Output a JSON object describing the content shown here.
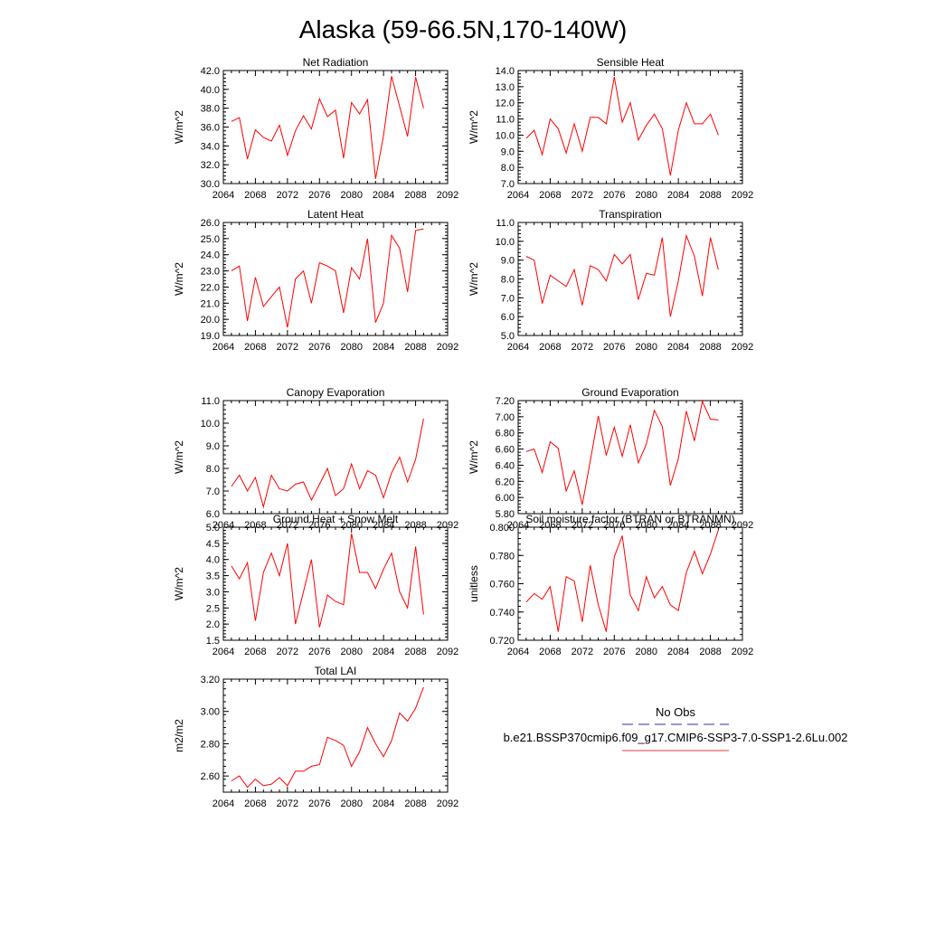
{
  "title": "Alaska (59-66.5N,170-140W)",
  "legend": {
    "obs_label": "No Obs",
    "obs_color": "#3333aa",
    "model_label": "b.e21.BSSP370cmip6.f09_g17.CMIP6-SSP3-7.0-SSP1-2.6Lu.002",
    "model_color": "#e8393f"
  },
  "chart_data": [
    {
      "type": "line",
      "title": "Net Radiation",
      "ylabel": "W/m^2",
      "xlim": [
        2064,
        2092
      ],
      "xticks": [
        "2064",
        "2068",
        "2072",
        "2076",
        "2080",
        "2084",
        "2088",
        "2092"
      ],
      "ylim": [
        30.0,
        42.0
      ],
      "yticks": [
        "30.0",
        "32.0",
        "34.0",
        "36.0",
        "38.0",
        "40.0",
        "42.0"
      ],
      "x": [
        2065,
        2066,
        2067,
        2068,
        2069,
        2070,
        2071,
        2072,
        2073,
        2074,
        2075,
        2076,
        2077,
        2078,
        2079,
        2080,
        2081,
        2082,
        2083,
        2084,
        2085,
        2086,
        2087,
        2088,
        2089
      ],
      "series": [
        {
          "color": "#ff0000",
          "values": [
            36.6,
            37.0,
            32.6,
            35.7,
            34.9,
            34.5,
            36.2,
            33.0,
            35.6,
            37.2,
            35.8,
            39.0,
            37.1,
            37.8,
            32.7,
            38.6,
            37.4,
            38.9,
            30.5,
            35.1,
            41.4,
            38.2,
            35.0,
            41.3,
            38.0
          ]
        }
      ]
    },
    {
      "type": "line",
      "title": "Sensible Heat",
      "ylabel": "W/m^2",
      "xlim": [
        2064,
        2092
      ],
      "xticks": [
        "2064",
        "2068",
        "2072",
        "2076",
        "2080",
        "2084",
        "2088",
        "2092"
      ],
      "ylim": [
        7.0,
        14.0
      ],
      "yticks": [
        "7.0",
        "8.0",
        "9.0",
        "10.0",
        "11.0",
        "12.0",
        "13.0",
        "14.0"
      ],
      "x": [
        2065,
        2066,
        2067,
        2068,
        2069,
        2070,
        2071,
        2072,
        2073,
        2074,
        2075,
        2076,
        2077,
        2078,
        2079,
        2080,
        2081,
        2082,
        2083,
        2084,
        2085,
        2086,
        2087,
        2088,
        2089
      ],
      "series": [
        {
          "color": "#ff0000",
          "values": [
            9.8,
            10.3,
            8.8,
            11.0,
            10.4,
            8.9,
            10.7,
            9.0,
            11.1,
            11.1,
            10.7,
            13.6,
            10.8,
            12.0,
            9.7,
            10.6,
            11.3,
            10.4,
            7.5,
            10.3,
            12.0,
            10.7,
            10.7,
            11.3,
            10.0
          ]
        }
      ]
    },
    {
      "type": "line",
      "title": "Latent Heat",
      "ylabel": "W/m^2",
      "xlim": [
        2064,
        2092
      ],
      "xticks": [
        "2064",
        "2068",
        "2072",
        "2076",
        "2080",
        "2084",
        "2088",
        "2092"
      ],
      "ylim": [
        19.0,
        26.0
      ],
      "yticks": [
        "19.0",
        "20.0",
        "21.0",
        "22.0",
        "23.0",
        "24.0",
        "25.0",
        "26.0"
      ],
      "x": [
        2065,
        2066,
        2067,
        2068,
        2069,
        2070,
        2071,
        2072,
        2073,
        2074,
        2075,
        2076,
        2077,
        2078,
        2079,
        2080,
        2081,
        2082,
        2083,
        2084,
        2085,
        2086,
        2087,
        2088,
        2089
      ],
      "series": [
        {
          "color": "#ff0000",
          "values": [
            23.0,
            23.3,
            19.9,
            22.6,
            20.8,
            21.4,
            22.0,
            19.5,
            22.5,
            23.0,
            21.0,
            23.5,
            23.3,
            23.0,
            20.4,
            23.2,
            22.5,
            25.0,
            19.8,
            21.0,
            25.2,
            24.4,
            21.7,
            25.5,
            25.6
          ]
        }
      ]
    },
    {
      "type": "line",
      "title": "Transpiration",
      "ylabel": "W/m^2",
      "xlim": [
        2064,
        2092
      ],
      "xticks": [
        "2064",
        "2068",
        "2072",
        "2076",
        "2080",
        "2084",
        "2088",
        "2092"
      ],
      "ylim": [
        5.0,
        11.0
      ],
      "yticks": [
        "5.0",
        "6.0",
        "7.0",
        "8.0",
        "9.0",
        "10.0",
        "11.0"
      ],
      "x": [
        2065,
        2066,
        2067,
        2068,
        2069,
        2070,
        2071,
        2072,
        2073,
        2074,
        2075,
        2076,
        2077,
        2078,
        2079,
        2080,
        2081,
        2082,
        2083,
        2084,
        2085,
        2086,
        2087,
        2088,
        2089
      ],
      "series": [
        {
          "color": "#ff0000",
          "values": [
            9.2,
            9.0,
            6.7,
            8.2,
            7.9,
            7.6,
            8.5,
            6.6,
            8.7,
            8.5,
            7.9,
            9.3,
            8.8,
            9.3,
            6.9,
            8.3,
            8.2,
            10.2,
            6.0,
            7.9,
            10.3,
            9.2,
            7.1,
            10.2,
            8.5
          ]
        }
      ]
    },
    {
      "type": "line",
      "title": "Canopy Evaporation",
      "ylabel": "W/m^2",
      "xlim": [
        2064,
        2092
      ],
      "xticks": [
        "2064",
        "2068",
        "2072",
        "2076",
        "2080",
        "2084",
        "2088",
        "2092"
      ],
      "ylim": [
        6.0,
        11.0
      ],
      "yticks": [
        "6.0",
        "7.0",
        "8.0",
        "9.0",
        "10.0",
        "11.0"
      ],
      "x": [
        2065,
        2066,
        2067,
        2068,
        2069,
        2070,
        2071,
        2072,
        2073,
        2074,
        2075,
        2076,
        2077,
        2078,
        2079,
        2080,
        2081,
        2082,
        2083,
        2084,
        2085,
        2086,
        2087,
        2088,
        2089
      ],
      "series": [
        {
          "color": "#ff0000",
          "values": [
            7.2,
            7.7,
            7.0,
            7.6,
            6.3,
            7.7,
            7.1,
            7.0,
            7.3,
            7.4,
            6.6,
            7.3,
            8.0,
            6.8,
            7.1,
            8.2,
            7.1,
            7.9,
            7.7,
            6.7,
            7.8,
            8.5,
            7.4,
            8.4,
            10.2
          ]
        }
      ]
    },
    {
      "type": "line",
      "title": "Ground Evaporation",
      "ylabel": "W/m^2",
      "xlim": [
        2064,
        2092
      ],
      "xticks": [
        "2064",
        "2068",
        "2072",
        "2076",
        "2080",
        "2084",
        "2088",
        "2092"
      ],
      "ylim": [
        5.8,
        7.2
      ],
      "yticks": [
        "5.80",
        "6.00",
        "6.20",
        "6.40",
        "6.60",
        "6.80",
        "7.00",
        "7.20"
      ],
      "x": [
        2065,
        2066,
        2067,
        2068,
        2069,
        2070,
        2071,
        2072,
        2073,
        2074,
        2075,
        2076,
        2077,
        2078,
        2079,
        2080,
        2081,
        2082,
        2083,
        2084,
        2085,
        2086,
        2087,
        2088,
        2089
      ],
      "series": [
        {
          "color": "#ff0000",
          "values": [
            6.57,
            6.6,
            6.31,
            6.69,
            6.61,
            6.08,
            6.33,
            5.91,
            6.45,
            7.01,
            6.52,
            6.87,
            6.51,
            6.9,
            6.43,
            6.66,
            7.08,
            6.88,
            6.15,
            6.48,
            7.07,
            6.7,
            7.19,
            6.97,
            6.96
          ]
        }
      ]
    },
    {
      "type": "line",
      "title": "Ground Heat + Snow Melt",
      "ylabel": "W/m^2",
      "xlim": [
        2064,
        2092
      ],
      "xticks": [
        "2064",
        "2068",
        "2072",
        "2076",
        "2080",
        "2084",
        "2088",
        "2092"
      ],
      "ylim": [
        1.5,
        5.0
      ],
      "yticks": [
        "1.5",
        "2.0",
        "2.5",
        "3.0",
        "3.5",
        "4.0",
        "4.5",
        "5.0"
      ],
      "x": [
        2065,
        2066,
        2067,
        2068,
        2069,
        2070,
        2071,
        2072,
        2073,
        2074,
        2075,
        2076,
        2077,
        2078,
        2079,
        2080,
        2081,
        2082,
        2083,
        2084,
        2085,
        2086,
        2087,
        2088,
        2089
      ],
      "series": [
        {
          "color": "#ff0000",
          "values": [
            3.8,
            3.4,
            3.9,
            2.1,
            3.6,
            4.2,
            3.5,
            4.5,
            2.0,
            3.0,
            4.0,
            1.9,
            2.9,
            2.7,
            2.6,
            4.8,
            3.6,
            3.6,
            3.1,
            3.7,
            4.2,
            3.0,
            2.5,
            4.4,
            2.3
          ]
        }
      ]
    },
    {
      "type": "line",
      "title": "Soil moisture factor (BTRAN or BTRANMN)",
      "ylabel": "unitless",
      "xlim": [
        2064,
        2092
      ],
      "xticks": [
        "2064",
        "2068",
        "2072",
        "2076",
        "2080",
        "2084",
        "2088",
        "2092"
      ],
      "ylim": [
        0.72,
        0.8
      ],
      "yticks": [
        "0.720",
        "0.740",
        "0.760",
        "0.780",
        "0.800"
      ],
      "x": [
        2065,
        2066,
        2067,
        2068,
        2069,
        2070,
        2071,
        2072,
        2073,
        2074,
        2075,
        2076,
        2077,
        2078,
        2079,
        2080,
        2081,
        2082,
        2083,
        2084,
        2085,
        2086,
        2087,
        2088,
        2089
      ],
      "series": [
        {
          "color": "#ff0000",
          "values": [
            0.747,
            0.753,
            0.749,
            0.758,
            0.726,
            0.765,
            0.762,
            0.733,
            0.773,
            0.745,
            0.726,
            0.779,
            0.794,
            0.752,
            0.741,
            0.765,
            0.75,
            0.758,
            0.745,
            0.741,
            0.768,
            0.783,
            0.767,
            0.781,
            0.798
          ]
        }
      ]
    },
    {
      "type": "line",
      "title": "Total LAI",
      "ylabel": "m2/m2",
      "xlim": [
        2064,
        2092
      ],
      "xticks": [
        "2064",
        "2068",
        "2072",
        "2076",
        "2080",
        "2084",
        "2088",
        "2092"
      ],
      "ylim": [
        2.5,
        3.2
      ],
      "yticks": [
        "2.60",
        "2.80",
        "3.00",
        "3.20"
      ],
      "x": [
        2065,
        2066,
        2067,
        2068,
        2069,
        2070,
        2071,
        2072,
        2073,
        2074,
        2075,
        2076,
        2077,
        2078,
        2079,
        2080,
        2081,
        2082,
        2083,
        2084,
        2085,
        2086,
        2087,
        2088,
        2089
      ],
      "series": [
        {
          "color": "#ff0000",
          "values": [
            2.57,
            2.6,
            2.53,
            2.58,
            2.54,
            2.55,
            2.59,
            2.54,
            2.63,
            2.63,
            2.66,
            2.67,
            2.84,
            2.82,
            2.79,
            2.66,
            2.75,
            2.9,
            2.8,
            2.72,
            2.82,
            2.99,
            2.94,
            3.02,
            3.15
          ]
        }
      ]
    }
  ]
}
